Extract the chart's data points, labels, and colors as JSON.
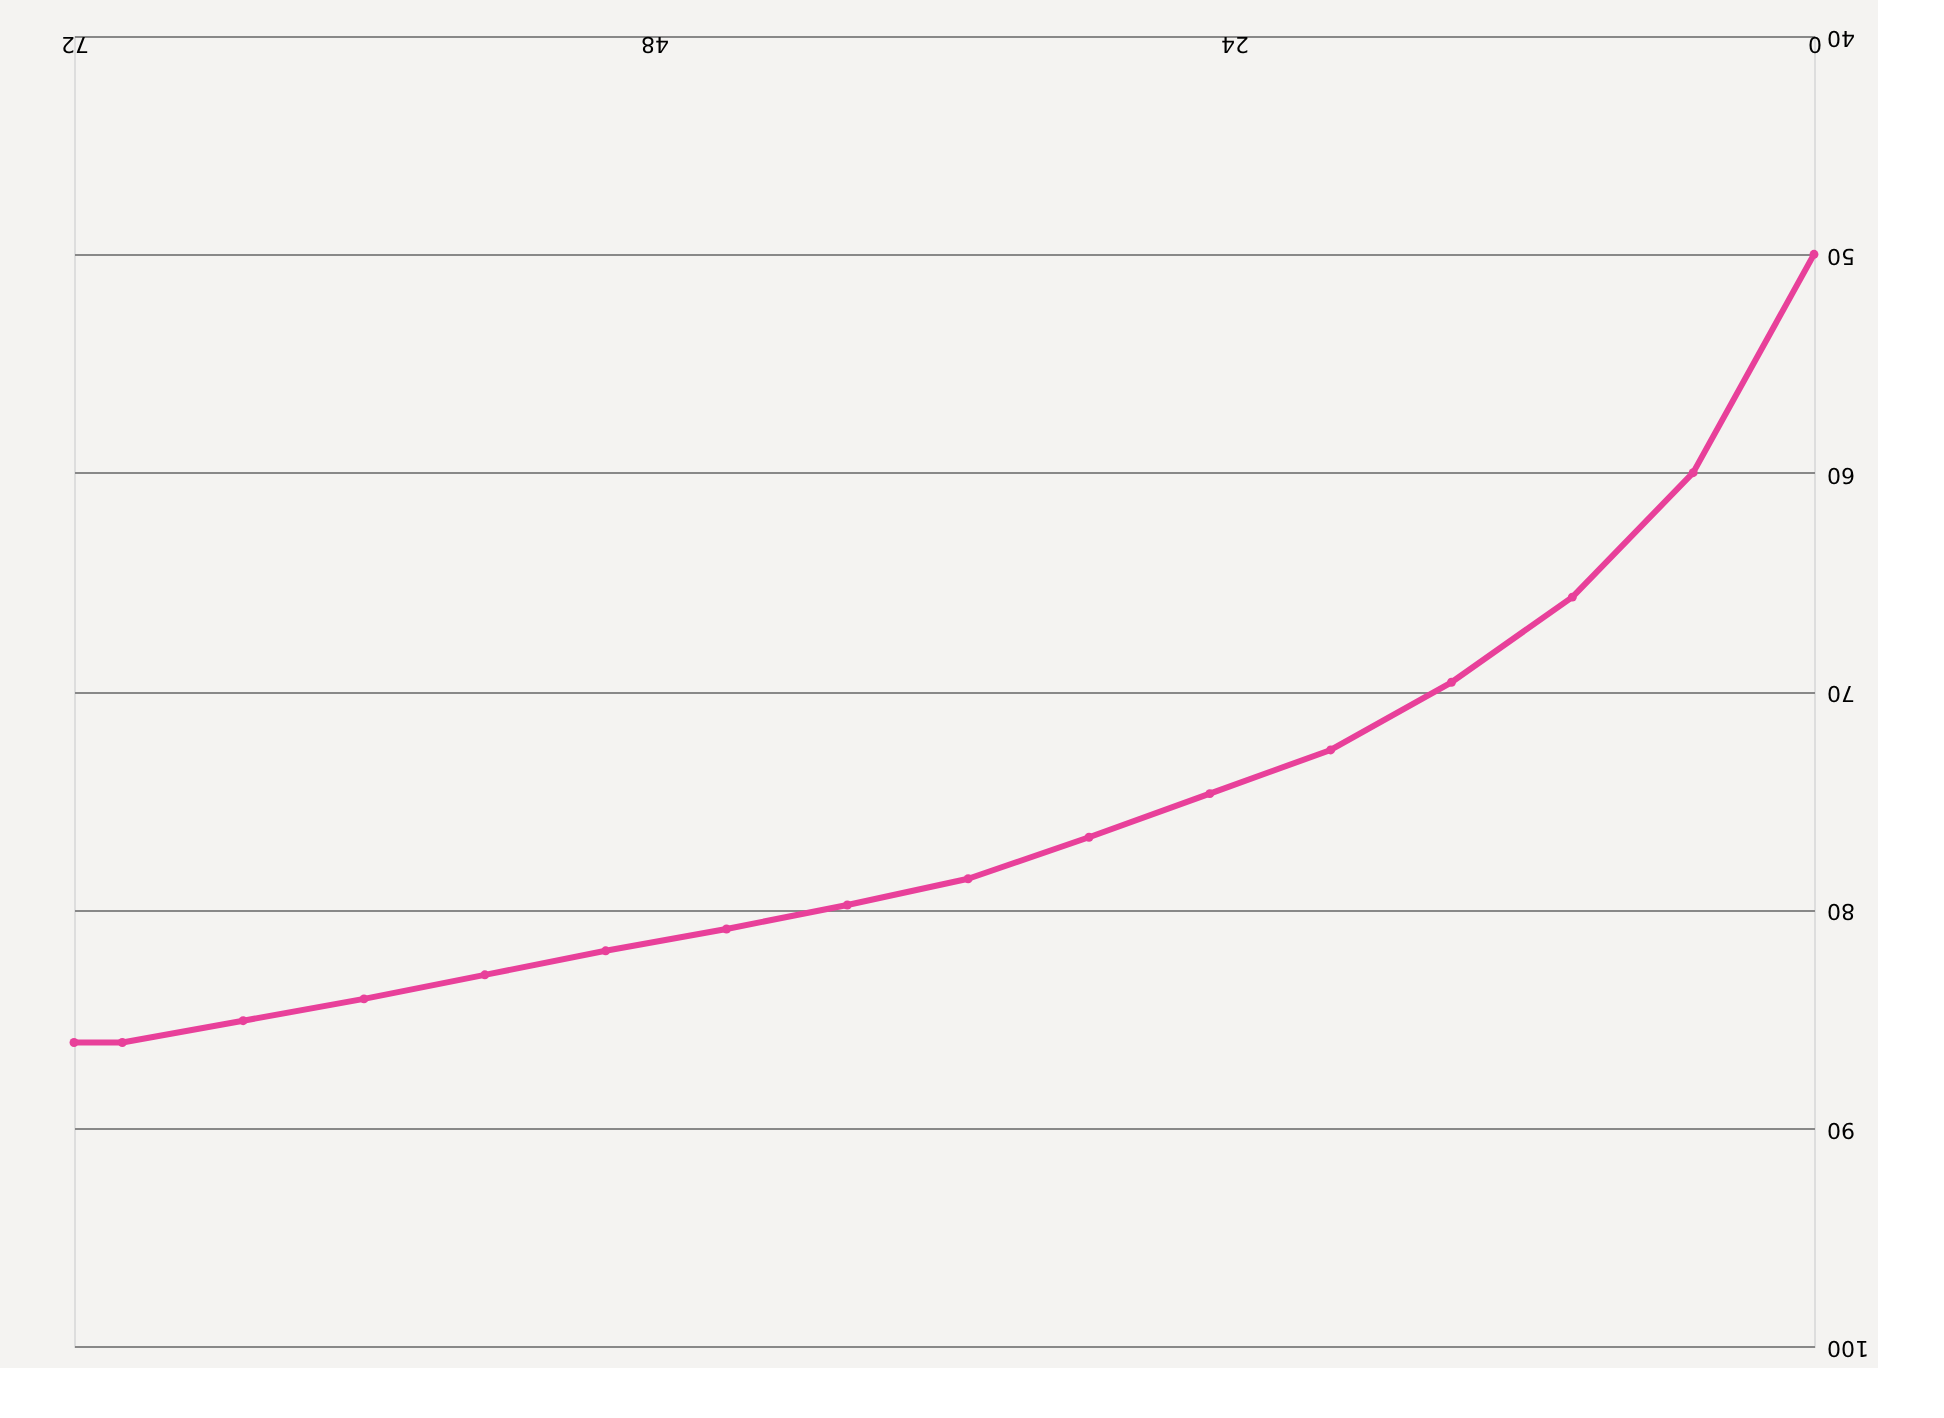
{
  "chart_data": {
    "type": "line",
    "x": [
      0,
      5,
      10,
      15,
      20,
      25,
      30,
      35,
      40,
      45,
      50,
      55,
      60,
      65,
      70,
      72
    ],
    "series": [
      {
        "color": "#e8409a",
        "values": [
          50,
          60,
          65.7,
          69.6,
          72.7,
          74.7,
          76.7,
          78.6,
          79.8,
          80.9,
          81.9,
          83,
          84.1,
          85.1,
          86.1,
          86.1
        ]
      }
    ],
    "xlim": [
      72,
      0
    ],
    "xticks": [
      0,
      24,
      48,
      72
    ],
    "ylim": [
      100,
      40
    ],
    "yticks": [
      40,
      50,
      60,
      70,
      80,
      90,
      100
    ],
    "grid": "y",
    "marker": "circle",
    "line_style": "solid"
  }
}
